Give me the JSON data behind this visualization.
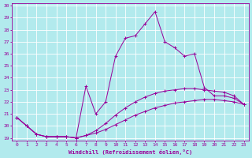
{
  "xlabel": "Windchill (Refroidissement éolien,°C)",
  "bg_color": "#b2eaed",
  "line_color": "#990099",
  "grid_color": "#ffffff",
  "xlim": [
    -0.5,
    23.5
  ],
  "ylim": [
    18.8,
    30.2
  ],
  "yticks": [
    19,
    20,
    21,
    22,
    23,
    24,
    25,
    26,
    27,
    28,
    29,
    30
  ],
  "xticks": [
    0,
    1,
    2,
    3,
    4,
    5,
    6,
    7,
    8,
    9,
    10,
    11,
    12,
    13,
    14,
    15,
    16,
    17,
    18,
    19,
    20,
    21,
    22,
    23
  ],
  "y_bottom": [
    20.7,
    20.0,
    19.3,
    19.1,
    19.1,
    19.1,
    19.0,
    19.2,
    19.4,
    19.7,
    20.1,
    20.5,
    20.9,
    21.2,
    21.5,
    21.7,
    21.9,
    22.0,
    22.1,
    22.2,
    22.2,
    22.1,
    22.0,
    21.8
  ],
  "y_mid": [
    20.7,
    20.0,
    19.3,
    19.1,
    19.1,
    19.1,
    19.0,
    19.2,
    19.6,
    20.2,
    20.9,
    21.5,
    22.0,
    22.4,
    22.7,
    22.9,
    23.0,
    23.1,
    23.1,
    23.0,
    22.9,
    22.8,
    22.5,
    21.8
  ],
  "y_peak": [
    20.7,
    20.0,
    19.3,
    19.1,
    19.1,
    19.1,
    19.0,
    23.3,
    21.0,
    22.0,
    25.8,
    27.3,
    27.5,
    28.5,
    29.5,
    27.0,
    26.5,
    25.8,
    26.0,
    23.2,
    22.5,
    22.5,
    22.3,
    21.8
  ]
}
